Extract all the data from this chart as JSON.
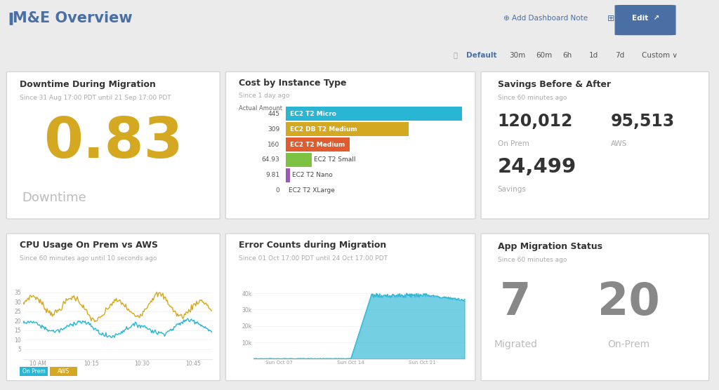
{
  "bg_color": "#ebebeb",
  "title": "M&E Overview",
  "title_color": "#4a6fa5",
  "panel1_title": "Downtime During Migration",
  "panel1_subtitle": "Since 31 Aug 17:00 PDT until 21 Sep 17:00 PDT",
  "panel1_value": "0.83",
  "panel1_value_color": "#d4a820",
  "panel1_label": "Downtime",
  "panel1_label_color": "#bbbbbb",
  "panel2_title": "Cost by Instance Type",
  "panel2_subtitle": "Since 1 day ago",
  "panel2_axis_label": "Actual Amount",
  "panel2_categories": [
    "EC2 T2 Micro",
    "EC2 DB T2 Medium",
    "EC2 T2 Medium",
    "EC2 T2 Small",
    "EC2 T2 Nano",
    "EC2 T2 XLarge"
  ],
  "panel2_values": [
    445,
    309,
    160,
    64.93,
    9.81,
    0
  ],
  "panel2_colors": [
    "#29b6d5",
    "#d4a820",
    "#e05c2e",
    "#7dc242",
    "#9b59b6",
    "#cccccc"
  ],
  "panel3_title": "Savings Before & After",
  "panel3_subtitle": "Since 60 minutes ago",
  "panel3_val1": "120,012",
  "panel3_val1_label": "On Prem",
  "panel3_val2": "95,513",
  "panel3_val2_label": "AWS",
  "panel3_val3": "24,499",
  "panel3_val3_label": "Savings",
  "panel4_title": "CPU Usage On Prem vs AWS",
  "panel4_subtitle": "Since 60 minutes ago until 10 seconds ago",
  "panel4_color_onprem": "#d4a820",
  "panel4_color_aws": "#29b6d5",
  "panel4_legend1": "On Prem",
  "panel4_legend2": "AWS",
  "panel5_title": "Error Counts during Migration",
  "panel5_subtitle": "Since 01 Oct 17:00 PDT until 24 Oct 17:00 PDT",
  "panel5_fill_color": "#29b6d5",
  "panel5_xticks": [
    "Sun Oct 07",
    "Sun Oct 14",
    "Sun Oct 21"
  ],
  "panel6_title": "App Migration Status",
  "panel6_subtitle": "Since 60 minutes ago",
  "panel6_val1": "7",
  "panel6_val1_label": "Migrated",
  "panel6_val2": "20",
  "panel6_val2_label": "On-Prem",
  "panel6_val_color": "#888888"
}
